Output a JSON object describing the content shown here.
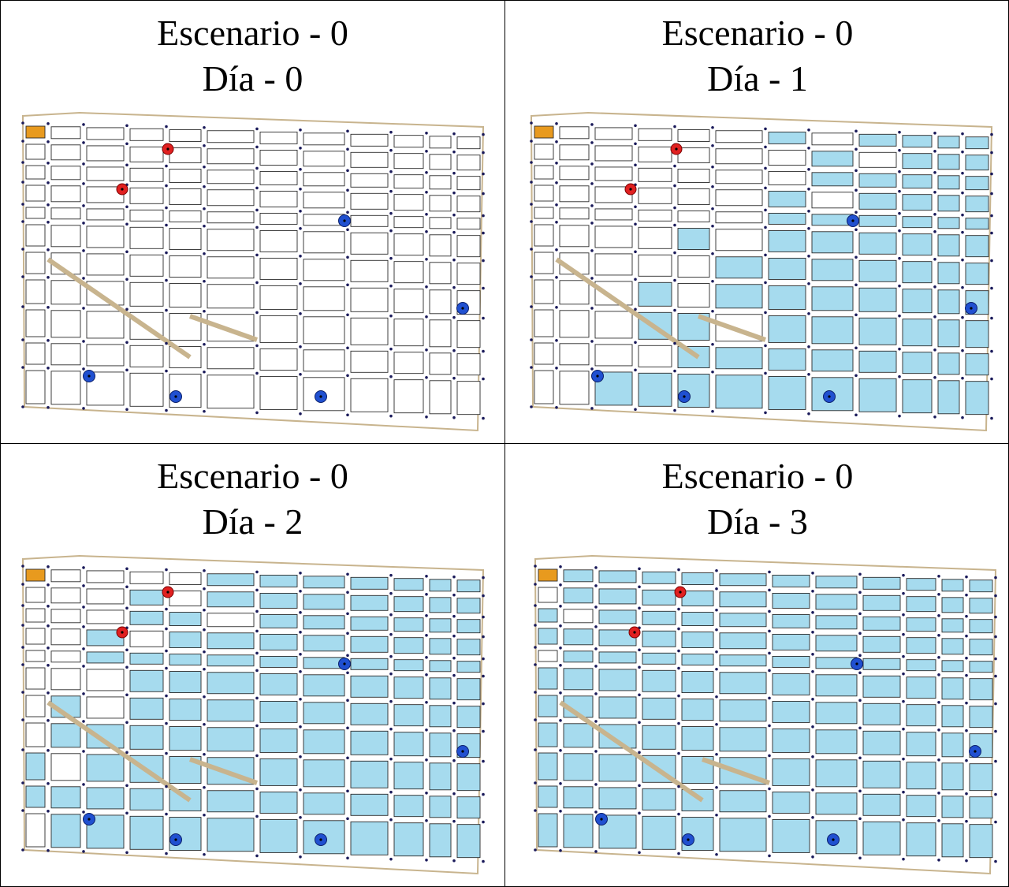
{
  "panels": [
    {
      "scenario_label": "Escenario - 0",
      "day_label": "Día - 0",
      "flooded_fraction": 0.0
    },
    {
      "scenario_label": "Escenario - 0",
      "day_label": "Día - 1",
      "flooded_fraction": 0.55
    },
    {
      "scenario_label": "Escenario - 0",
      "day_label": "Día - 2",
      "flooded_fraction": 0.8
    },
    {
      "scenario_label": "Escenario - 0",
      "day_label": "Día - 3",
      "flooded_fraction": 0.97
    }
  ],
  "legend_colors": {
    "flooded_block": "#a6dbee",
    "dry_block": "#ffffff",
    "street": "#c8b48e",
    "node": "#1a1a5a",
    "source_marker": "#e02020",
    "sink_marker": "#2050d0",
    "special_block": "#e89a1e"
  }
}
